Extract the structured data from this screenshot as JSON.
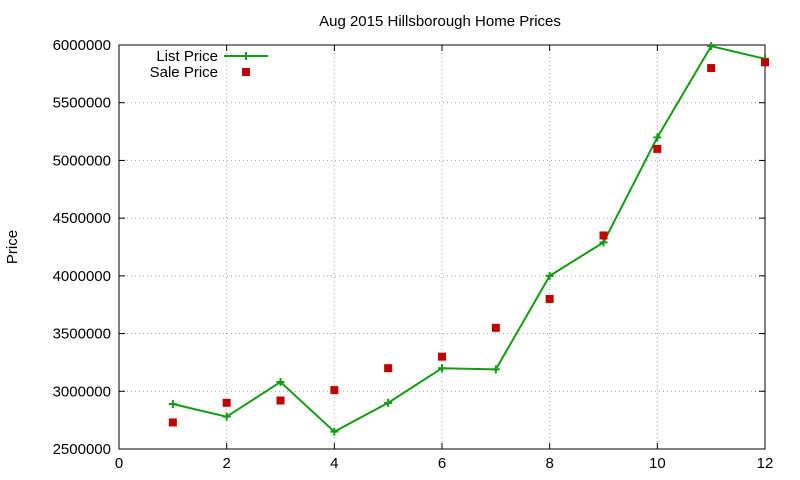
{
  "chart_data": {
    "type": "line",
    "title": "Aug 2015 Hillsborough Home Prices",
    "xlabel": "",
    "ylabel": "Price",
    "xlim": [
      0,
      12
    ],
    "ylim": [
      2500000,
      6000000
    ],
    "x_ticks": [
      0,
      2,
      4,
      6,
      8,
      10,
      12
    ],
    "y_ticks": [
      2500000,
      3000000,
      3500000,
      4000000,
      4500000,
      5000000,
      5500000,
      6000000
    ],
    "grid": true,
    "legend_position": "top-left",
    "series": [
      {
        "name": "List Price",
        "style": "line-with-plus-markers",
        "color": "#139c13",
        "x": [
          1,
          2,
          3,
          4,
          5,
          6,
          7,
          8,
          9,
          10,
          11,
          12
        ],
        "values": [
          2890000,
          2780000,
          3080000,
          2650000,
          2900000,
          3200000,
          3190000,
          4000000,
          4290000,
          5200000,
          5990000,
          5880000
        ]
      },
      {
        "name": "Sale Price",
        "style": "square-markers",
        "color": "#c00000",
        "x": [
          1,
          2,
          3,
          4,
          5,
          6,
          7,
          8,
          9,
          10,
          11,
          12
        ],
        "values": [
          2730000,
          2900000,
          2920000,
          3010000,
          3200000,
          3300000,
          3550000,
          3800000,
          4350000,
          5100000,
          5800000,
          5850000
        ]
      }
    ]
  }
}
